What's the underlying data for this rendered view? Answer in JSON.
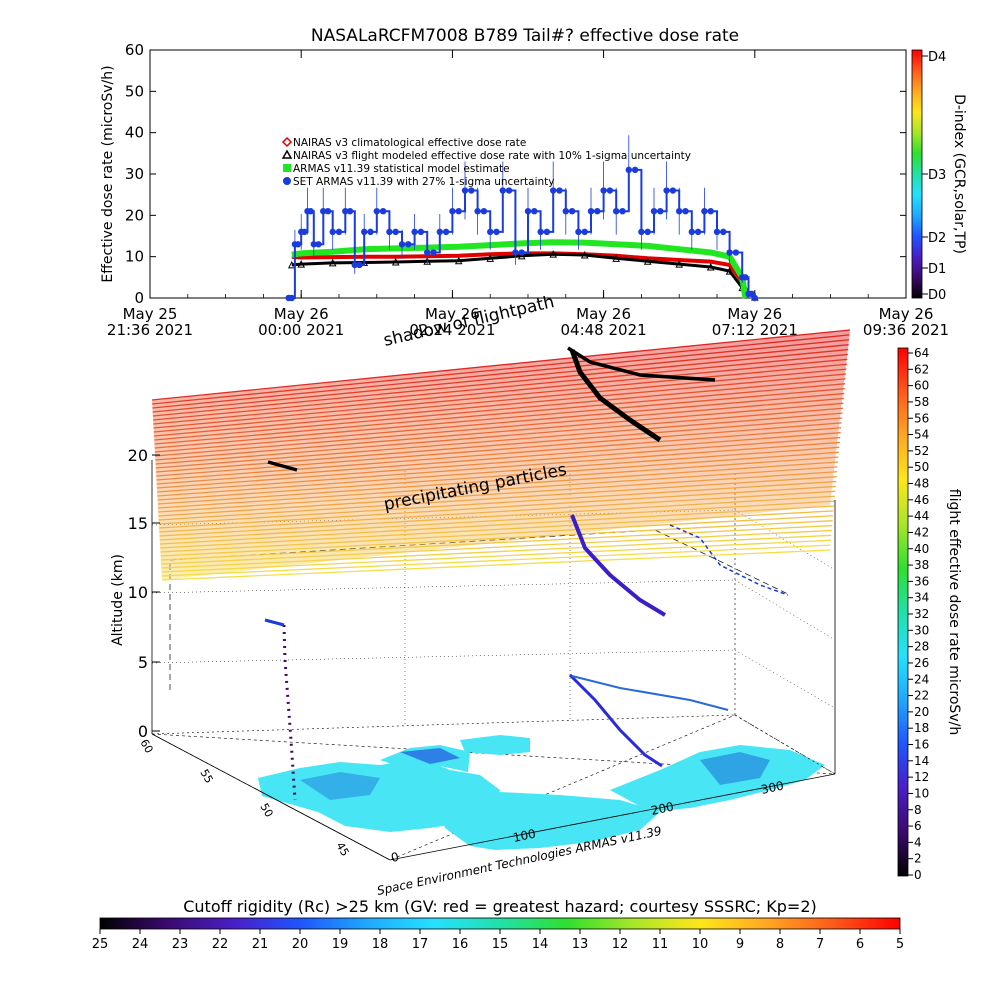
{
  "title": "NASALaRCFM7008  B789 Tail#? effective dose rate",
  "colors": {
    "nairas_clim": "#e00000",
    "nairas_flight": "#000000",
    "armas_model": "#22e622",
    "set_armas": "#1a3cdc",
    "cutoff_gradient": [
      "#000000",
      "#3b0a6e",
      "#4a1ec8",
      "#1f55ff",
      "#1fa8ff",
      "#26e0ff",
      "#22e0a8",
      "#2ee02e",
      "#a8e62a",
      "#ffe61a",
      "#ffa822",
      "#ff5a1a",
      "#ff0000"
    ],
    "dose_gradient": [
      "#000000",
      "#3b0a6e",
      "#4a1ec8",
      "#1f55ff",
      "#1fa8ff",
      "#26e0ff",
      "#22e0a8",
      "#2ee02e",
      "#a8e62a",
      "#ffe61a",
      "#ffa822",
      "#ff5a1a",
      "#ff0000"
    ],
    "dindex_gradient": [
      "#000000",
      "#3b0a6e",
      "#4a1ec8",
      "#1f55ff",
      "#1fa8ff",
      "#26e0ff",
      "#22e0a8",
      "#2ee02e",
      "#a8e62a",
      "#ffe61a",
      "#ffa822",
      "#ff5a1a",
      "#ff0000"
    ]
  },
  "chart_data": [
    {
      "type": "line",
      "name": "dose-rate-timeseries",
      "ylabel": "Effective dose rate (microSv/h)",
      "ylim": [
        0,
        60
      ],
      "yticks": [
        "0",
        "10",
        "20",
        "30",
        "40",
        "50",
        "60"
      ],
      "xlim_hours": [
        -2.4,
        9.6
      ],
      "xticks": [
        {
          "line1": "May 25",
          "line2": "21:36 2021"
        },
        {
          "line1": "May 26",
          "line2": "00:00 2021"
        },
        {
          "line1": "May 26",
          "line2": "02:24 2021"
        },
        {
          "line1": "May 26",
          "line2": "04:48 2021"
        },
        {
          "line1": "May 26",
          "line2": "07:12 2021"
        },
        {
          "line1": "May 26",
          "line2": "09:36 2021"
        }
      ],
      "right_axis": {
        "label": "D-index (GCR,solar,TP)",
        "ticks": [
          "D0",
          "D1",
          "D2",
          "D3",
          "D4"
        ]
      },
      "legend": [
        {
          "label": "NAIRAS v3 climatological effective dose rate",
          "marker": "diamond",
          "series": 0
        },
        {
          "label": "NAIRAS v3 flight modeled effective dose rate with 10% 1-sigma uncertainty",
          "marker": "triangle",
          "series": 1
        },
        {
          "label": "ARMAS v11.39 statistical model estimate",
          "marker": "square",
          "series": 2
        },
        {
          "label": "SET ARMAS v11.39 with 27% 1-sigma uncertainty",
          "marker": "circle",
          "series": 3
        }
      ],
      "series": [
        {
          "name": "NAIRAS v3 climatological effective dose rate",
          "x": [
            -0.15,
            0.0,
            0.5,
            1.0,
            1.5,
            2.0,
            2.5,
            3.0,
            3.5,
            4.0,
            4.5,
            5.0,
            5.5,
            6.0,
            6.5,
            6.8,
            7.0,
            7.1
          ],
          "y": [
            10.0,
            9.8,
            9.9,
            10.0,
            10.0,
            10.1,
            10.2,
            10.6,
            10.8,
            10.8,
            10.6,
            10.2,
            9.6,
            9.2,
            8.8,
            8.0,
            4.0,
            0.5
          ]
        },
        {
          "name": "NAIRAS v3 flight modeled effective dose rate",
          "x": [
            -0.15,
            0.0,
            0.5,
            1.0,
            1.5,
            2.0,
            2.5,
            3.0,
            3.5,
            4.0,
            4.5,
            5.0,
            5.5,
            6.0,
            6.5,
            6.8,
            7.0,
            7.2
          ],
          "y": [
            8.0,
            8.2,
            8.5,
            8.6,
            8.7,
            8.9,
            9.0,
            9.6,
            10.2,
            10.6,
            10.4,
            9.6,
            8.9,
            8.2,
            7.5,
            6.5,
            2.5,
            0.2
          ]
        },
        {
          "name": "ARMAS v11.39 statistical model estimate",
          "x": [
            -0.15,
            0.0,
            0.5,
            1.0,
            1.5,
            2.0,
            2.5,
            3.0,
            3.5,
            4.0,
            4.5,
            5.0,
            5.5,
            6.0,
            6.5,
            6.8,
            7.0,
            7.05
          ],
          "y": [
            10.5,
            10.8,
            11.2,
            11.8,
            12.0,
            12.2,
            12.4,
            12.8,
            13.2,
            13.5,
            13.4,
            13.0,
            12.6,
            11.8,
            11.0,
            10.0,
            5.0,
            0.0
          ]
        },
        {
          "name": "SET ARMAS v11.39 with 27% 1-sigma uncertainty",
          "x": [
            -0.2,
            -0.1,
            0.0,
            0.1,
            0.2,
            0.35,
            0.5,
            0.7,
            0.85,
            1.0,
            1.2,
            1.4,
            1.6,
            1.8,
            2.0,
            2.2,
            2.4,
            2.6,
            2.8,
            3.0,
            3.2,
            3.4,
            3.6,
            3.8,
            4.0,
            4.2,
            4.4,
            4.6,
            4.8,
            5.0,
            5.2,
            5.4,
            5.6,
            5.8,
            6.0,
            6.2,
            6.4,
            6.6,
            6.8,
            7.0,
            7.1,
            7.2
          ],
          "y": [
            0,
            13,
            16,
            21,
            13,
            21,
            16,
            21,
            8,
            16,
            21,
            16,
            13,
            16,
            11,
            16,
            21,
            26,
            21,
            16,
            26,
            11,
            21,
            16,
            26,
            21,
            16,
            21,
            26,
            21,
            31,
            16,
            21,
            26,
            21,
            16,
            21,
            16,
            11,
            5,
            1,
            0
          ]
        }
      ]
    },
    {
      "type": "scatter",
      "name": "3d-flight-path",
      "zlabel": "Altitude (km)",
      "zticks": [
        "0",
        "5",
        "10",
        "15",
        "20"
      ],
      "lat_ticks": [
        "60",
        "55",
        "50",
        "45"
      ],
      "lon_ticks": [
        "0",
        "100",
        "200",
        "300"
      ],
      "annotations": [
        "shadow of flightpath",
        "precipitating particles"
      ],
      "credit": "Space Environment Technologies ARMAS v11.39",
      "dose_colorbar": {
        "label": "flight effective dose rate microSv/h",
        "ticks": [
          "0",
          "2",
          "4",
          "6",
          "8",
          "10",
          "12",
          "14",
          "16",
          "18",
          "20",
          "22",
          "24",
          "26",
          "28",
          "30",
          "32",
          "34",
          "36",
          "38",
          "40",
          "42",
          "44",
          "46",
          "48",
          "50",
          "52",
          "54",
          "56",
          "58",
          "60",
          "62",
          "64"
        ]
      }
    },
    {
      "type": "heatmap",
      "name": "cutoff-rigidity-colorbar",
      "label": "Cutoff rigidity (Rc) >25 km (GV: red = greatest hazard; courtesy SSSRC; Kp=2)",
      "ticks": [
        "25",
        "24",
        "23",
        "22",
        "21",
        "20",
        "19",
        "18",
        "17",
        "16",
        "15",
        "14",
        "13",
        "12",
        "11",
        "10",
        "9",
        "8",
        "7",
        "6",
        "5"
      ]
    }
  ]
}
